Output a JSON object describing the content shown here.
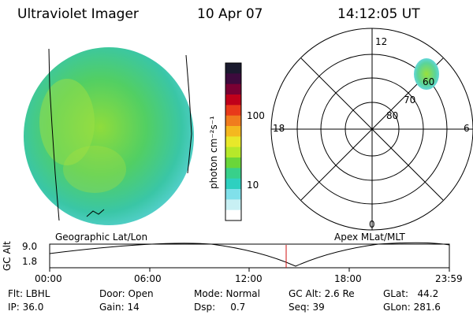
{
  "header": {
    "title": "Ultraviolet Imager",
    "date": "10 Apr 07",
    "time": "14:12:05 UT"
  },
  "colorbar": {
    "unit_label": "photon cm⁻²s⁻¹",
    "ticks": [
      "100",
      "10"
    ],
    "colors": [
      "#1a1a2e",
      "#3d0a3d",
      "#7a0033",
      "#c0001a",
      "#e83a1a",
      "#f07c1e",
      "#f4b81f",
      "#e8e82a",
      "#b6e82a",
      "#6ad63a",
      "#38d08a",
      "#2ed0c0",
      "#80e0ea",
      "#c8f0f4",
      "#ffffff"
    ]
  },
  "polar": {
    "mlt_labels": {
      "top": "12",
      "left": "18",
      "right": "6",
      "bottom": "0"
    },
    "lat_labels": [
      "60",
      "70",
      "80"
    ]
  },
  "panels": {
    "left_label": "Geographic Lat/Lon",
    "right_label": "Apex MLat/MLT"
  },
  "altitude_plot": {
    "axis_label": "GC Alt",
    "y_ticks": [
      "9.0",
      "1.8"
    ],
    "x_ticks": [
      "00:00",
      "06:00",
      "12:00",
      "18:00",
      "23:59"
    ]
  },
  "status": {
    "flt": "Flt: LBHL",
    "ip": "IP: 36.0",
    "door": "Door: Open",
    "gain": "Gain: 14",
    "mode": "Mode: Normal",
    "dsp": "Dsp:     0.7",
    "gcalt": "GC Alt: 2.6 Re",
    "seq": "Seq: 39",
    "glat": "GLat:   44.2",
    "glon": "GLon: 281.6"
  }
}
